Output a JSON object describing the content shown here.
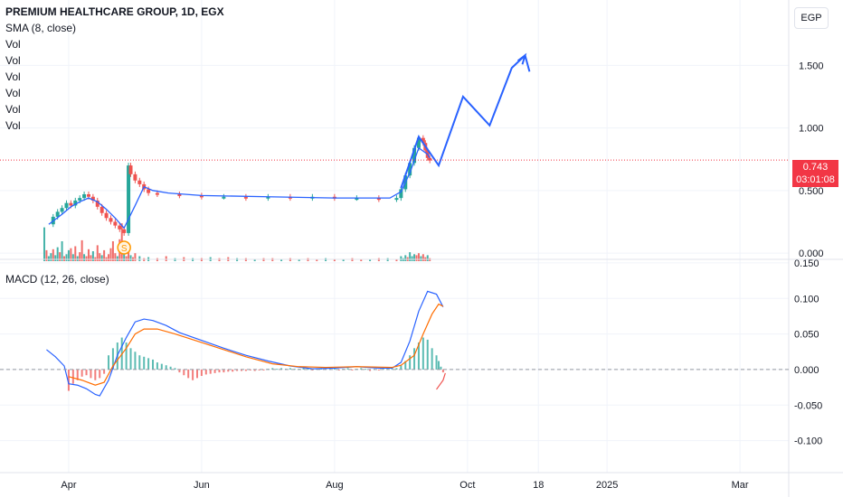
{
  "header": {
    "title": "PREMIUM HEALTHCARE GROUP, 1D, EGX",
    "indicators": [
      "SMA (8, close)",
      "Vol",
      "Vol",
      "Vol",
      "Vol",
      "Vol",
      "Vol"
    ]
  },
  "currency_button": "EGP",
  "last_price": {
    "value": "0.743",
    "countdown": "03:01:08"
  },
  "macd_legend": "MACD (12, 26, close)",
  "colors": {
    "up": "#26a69a",
    "down": "#ef5350",
    "sma": "#2962ff",
    "signal": "#ff6d00",
    "price_tag": "#f23645"
  },
  "chart_data": [
    {
      "type": "candlestick",
      "title": "PREMIUM HEALTHCARE GROUP, 1D, EGX",
      "y_ticks": [
        "1.500",
        "1.000",
        "0.500",
        "0.000"
      ],
      "ylim": [
        -0.05,
        1.95
      ],
      "x_ticks": [
        "Apr",
        "Jun",
        "Aug",
        "Oct",
        "18",
        "2025",
        "Mar"
      ],
      "x_tick_values": [
        0,
        60,
        120,
        180,
        212,
        243,
        303
      ],
      "xlim": [
        -31,
        325
      ],
      "grid": true,
      "price": [
        [
          -9,
          0.23
        ],
        [
          -7,
          0.29
        ],
        [
          -5,
          0.33
        ],
        [
          -3,
          0.36
        ],
        [
          -1,
          0.4
        ],
        [
          1,
          0.38
        ],
        [
          3,
          0.42
        ],
        [
          5,
          0.44
        ],
        [
          7,
          0.47
        ],
        [
          9,
          0.45
        ],
        [
          11,
          0.42
        ],
        [
          13,
          0.37
        ],
        [
          15,
          0.32
        ],
        [
          17,
          0.28
        ],
        [
          19,
          0.25
        ],
        [
          21,
          0.22
        ],
        [
          23,
          0.19
        ],
        [
          25,
          0.16
        ],
        [
          27,
          0.7
        ],
        [
          28,
          0.63
        ],
        [
          30,
          0.58
        ],
        [
          32,
          0.55
        ],
        [
          34,
          0.51
        ],
        [
          36,
          0.48
        ],
        [
          40,
          0.47
        ],
        [
          50,
          0.46
        ],
        [
          60,
          0.45
        ],
        [
          70,
          0.45
        ],
        [
          80,
          0.44
        ],
        [
          90,
          0.45
        ],
        [
          100,
          0.44
        ],
        [
          110,
          0.45
        ],
        [
          120,
          0.44
        ],
        [
          130,
          0.44
        ],
        [
          140,
          0.43
        ],
        [
          148,
          0.44
        ],
        [
          150,
          0.51
        ],
        [
          152,
          0.62
        ],
        [
          154,
          0.72
        ],
        [
          156,
          0.84
        ],
        [
          158,
          0.92
        ],
        [
          160,
          0.88
        ],
        [
          161,
          0.82
        ],
        [
          162,
          0.76
        ],
        [
          163,
          0.74
        ]
      ],
      "sma_8": [
        [
          -9,
          0.23
        ],
        [
          -3,
          0.31
        ],
        [
          1,
          0.37
        ],
        [
          5,
          0.41
        ],
        [
          9,
          0.44
        ],
        [
          13,
          0.41
        ],
        [
          17,
          0.35
        ],
        [
          21,
          0.28
        ],
        [
          25,
          0.2
        ],
        [
          30,
          0.38
        ],
        [
          34,
          0.53
        ],
        [
          38,
          0.5
        ],
        [
          45,
          0.48
        ],
        [
          60,
          0.46
        ],
        [
          90,
          0.45
        ],
        [
          120,
          0.44
        ],
        [
          145,
          0.44
        ],
        [
          150,
          0.49
        ],
        [
          154,
          0.64
        ],
        [
          158,
          0.84
        ],
        [
          162,
          0.79
        ],
        [
          163,
          0.76
        ]
      ],
      "volume": [
        [
          -11,
          0.34
        ],
        [
          -10,
          0.11
        ],
        [
          -9,
          0.05
        ],
        [
          -8,
          0.08
        ],
        [
          -7,
          0.12
        ],
        [
          -6,
          0.06
        ],
        [
          -5,
          0.14
        ],
        [
          -4,
          0.09
        ],
        [
          -3,
          0.2
        ],
        [
          -2,
          0.05
        ],
        [
          -1,
          0.07
        ],
        [
          0,
          0.11
        ],
        [
          1,
          0.13
        ],
        [
          2,
          0.07
        ],
        [
          3,
          0.15
        ],
        [
          4,
          0.05
        ],
        [
          5,
          0.09
        ],
        [
          6,
          0.21
        ],
        [
          7,
          0.07
        ],
        [
          8,
          0.05
        ],
        [
          9,
          0.12
        ],
        [
          10,
          0.06
        ],
        [
          11,
          0.1
        ],
        [
          12,
          0.04
        ],
        [
          13,
          0.16
        ],
        [
          14,
          0.08
        ],
        [
          15,
          0.06
        ],
        [
          16,
          0.11
        ],
        [
          17,
          0.04
        ],
        [
          18,
          0.07
        ],
        [
          19,
          0.13
        ],
        [
          20,
          0.2
        ],
        [
          21,
          0.08
        ],
        [
          22,
          0.05
        ],
        [
          23,
          0.22
        ],
        [
          24,
          0.38
        ],
        [
          25,
          0.09
        ],
        [
          26,
          0.05
        ],
        [
          27,
          0.11
        ],
        [
          28,
          0.06
        ],
        [
          29,
          0.04
        ],
        [
          30,
          0.08
        ],
        [
          32,
          0.05
        ],
        [
          34,
          0.03
        ],
        [
          36,
          0.04
        ],
        [
          40,
          0.03
        ],
        [
          44,
          0.05
        ],
        [
          48,
          0.03
        ],
        [
          52,
          0.04
        ],
        [
          56,
          0.03
        ],
        [
          60,
          0.03
        ],
        [
          64,
          0.04
        ],
        [
          68,
          0.03
        ],
        [
          72,
          0.04
        ],
        [
          76,
          0.03
        ],
        [
          80,
          0.03
        ],
        [
          84,
          0.02
        ],
        [
          88,
          0.03
        ],
        [
          92,
          0.03
        ],
        [
          96,
          0.02
        ],
        [
          100,
          0.03
        ],
        [
          104,
          0.02
        ],
        [
          108,
          0.03
        ],
        [
          112,
          0.02
        ],
        [
          116,
          0.03
        ],
        [
          120,
          0.02
        ],
        [
          124,
          0.02
        ],
        [
          128,
          0.03
        ],
        [
          132,
          0.02
        ],
        [
          136,
          0.02
        ],
        [
          140,
          0.03
        ],
        [
          144,
          0.03
        ],
        [
          148,
          0.02
        ],
        [
          150,
          0.05
        ],
        [
          151,
          0.03
        ],
        [
          152,
          0.06
        ],
        [
          153,
          0.04
        ],
        [
          154,
          0.09
        ],
        [
          155,
          0.05
        ],
        [
          156,
          0.07
        ],
        [
          157,
          0.06
        ],
        [
          158,
          0.08
        ],
        [
          159,
          0.05
        ],
        [
          160,
          0.07
        ],
        [
          161,
          0.04
        ],
        [
          162,
          0.06
        ],
        [
          163,
          0.03
        ]
      ],
      "volume_direction": [
        1,
        0,
        1,
        1,
        0,
        1,
        1,
        0,
        1,
        0,
        1,
        1,
        0,
        1,
        0,
        1,
        0,
        0,
        1,
        0,
        0,
        0,
        1,
        0,
        0,
        0,
        1,
        0,
        0,
        0,
        0,
        0,
        0,
        1,
        0,
        0,
        1,
        0,
        0,
        1,
        0,
        0,
        1,
        0,
        1,
        0,
        0,
        1,
        0,
        1,
        0,
        1,
        0,
        0,
        1,
        0,
        1,
        0,
        0,
        1,
        0,
        1,
        0,
        0,
        1,
        0,
        1,
        0,
        0,
        1,
        0,
        1,
        0,
        1,
        1,
        1,
        0,
        1,
        1,
        1,
        0,
        0,
        1,
        0,
        0,
        1,
        0
      ],
      "projection": [
        [
          150,
          0.52
        ],
        [
          158,
          0.93
        ],
        [
          167,
          0.7
        ],
        [
          178,
          1.25
        ],
        [
          190,
          1.02
        ],
        [
          200,
          1.48
        ],
        [
          206,
          1.58
        ],
        [
          208,
          1.45
        ]
      ]
    },
    {
      "type": "line",
      "title": "MACD (12, 26, close)",
      "y_ticks": [
        "0.150",
        "0.100",
        "0.050",
        "0.000",
        "-0.050",
        "-0.100"
      ],
      "ylim": [
        -0.145,
        0.155
      ],
      "macd": [
        [
          -10,
          0.028
        ],
        [
          -6,
          0.018
        ],
        [
          -2,
          0.005
        ],
        [
          0,
          -0.02
        ],
        [
          4,
          -0.022
        ],
        [
          8,
          -0.027
        ],
        [
          12,
          -0.035
        ],
        [
          14,
          -0.037
        ],
        [
          18,
          -0.015
        ],
        [
          22,
          0.02
        ],
        [
          26,
          0.045
        ],
        [
          30,
          0.067
        ],
        [
          34,
          0.071
        ],
        [
          38,
          0.069
        ],
        [
          44,
          0.062
        ],
        [
          50,
          0.052
        ],
        [
          60,
          0.041
        ],
        [
          70,
          0.03
        ],
        [
          80,
          0.02
        ],
        [
          90,
          0.012
        ],
        [
          100,
          0.005
        ],
        [
          110,
          0.001
        ],
        [
          120,
          0.002
        ],
        [
          130,
          0.004
        ],
        [
          140,
          0.002
        ],
        [
          146,
          0.002
        ],
        [
          150,
          0.01
        ],
        [
          154,
          0.04
        ],
        [
          158,
          0.082
        ],
        [
          162,
          0.11
        ],
        [
          166,
          0.106
        ],
        [
          169,
          0.088
        ]
      ],
      "signal": [
        [
          0,
          -0.01
        ],
        [
          6,
          -0.015
        ],
        [
          12,
          -0.022
        ],
        [
          16,
          -0.018
        ],
        [
          20,
          0.005
        ],
        [
          26,
          0.03
        ],
        [
          30,
          0.05
        ],
        [
          34,
          0.057
        ],
        [
          40,
          0.057
        ],
        [
          48,
          0.05
        ],
        [
          58,
          0.04
        ],
        [
          70,
          0.028
        ],
        [
          80,
          0.018
        ],
        [
          92,
          0.008
        ],
        [
          104,
          0.004
        ],
        [
          116,
          0.003
        ],
        [
          130,
          0.004
        ],
        [
          146,
          0.003
        ],
        [
          150,
          0.006
        ],
        [
          156,
          0.02
        ],
        [
          160,
          0.05
        ],
        [
          164,
          0.078
        ],
        [
          167,
          0.092
        ],
        [
          169,
          0.089
        ]
      ],
      "histogram": [
        [
          0,
          -0.03
        ],
        [
          2,
          -0.02
        ],
        [
          4,
          -0.015
        ],
        [
          6,
          -0.01
        ],
        [
          8,
          -0.008
        ],
        [
          10,
          -0.012
        ],
        [
          12,
          -0.015
        ],
        [
          14,
          -0.012
        ],
        [
          16,
          -0.006
        ],
        [
          18,
          0.02
        ],
        [
          20,
          0.03
        ],
        [
          22,
          0.038
        ],
        [
          24,
          0.045
        ],
        [
          26,
          0.038
        ],
        [
          28,
          0.03
        ],
        [
          30,
          0.025
        ],
        [
          32,
          0.02
        ],
        [
          34,
          0.018
        ],
        [
          36,
          0.016
        ],
        [
          38,
          0.014
        ],
        [
          40,
          0.01
        ],
        [
          42,
          0.008
        ],
        [
          44,
          0.006
        ],
        [
          46,
          0.004
        ],
        [
          48,
          0.002
        ],
        [
          50,
          -0.004
        ],
        [
          52,
          -0.008
        ],
        [
          54,
          -0.012
        ],
        [
          56,
          -0.015
        ],
        [
          58,
          -0.012
        ],
        [
          60,
          -0.009
        ],
        [
          62,
          -0.007
        ],
        [
          64,
          -0.006
        ],
        [
          66,
          -0.005
        ],
        [
          68,
          -0.004
        ],
        [
          70,
          -0.004
        ],
        [
          72,
          -0.003
        ],
        [
          74,
          -0.003
        ],
        [
          76,
          -0.002
        ],
        [
          78,
          -0.002
        ],
        [
          80,
          -0.002
        ],
        [
          82,
          -0.001
        ],
        [
          84,
          -0.002
        ],
        [
          86,
          -0.001
        ],
        [
          88,
          -0.001
        ],
        [
          90,
          0.001
        ],
        [
          92,
          0.002
        ],
        [
          94,
          0.001
        ],
        [
          96,
          0.002
        ],
        [
          98,
          0.001
        ],
        [
          100,
          0.002
        ],
        [
          102,
          0.001
        ],
        [
          104,
          0.001
        ],
        [
          106,
          0.002
        ],
        [
          108,
          0.001
        ],
        [
          110,
          -0.001
        ],
        [
          112,
          0.001
        ],
        [
          114,
          0.002
        ],
        [
          116,
          0.001
        ],
        [
          118,
          0.001
        ],
        [
          120,
          0.002
        ],
        [
          122,
          -0.001
        ],
        [
          124,
          0.001
        ],
        [
          126,
          0.002
        ],
        [
          128,
          -0.001
        ],
        [
          130,
          0.001
        ],
        [
          132,
          0.002
        ],
        [
          134,
          0.001
        ],
        [
          136,
          -0.002
        ],
        [
          138,
          0.001
        ],
        [
          140,
          -0.001
        ],
        [
          142,
          0.001
        ],
        [
          144,
          0.001
        ],
        [
          146,
          0.001
        ],
        [
          148,
          0.002
        ],
        [
          150,
          0.006
        ],
        [
          152,
          0.012
        ],
        [
          154,
          0.02
        ],
        [
          156,
          0.03
        ],
        [
          158,
          0.038
        ],
        [
          160,
          0.045
        ],
        [
          162,
          0.042
        ],
        [
          164,
          0.03
        ],
        [
          166,
          0.02
        ],
        [
          167,
          0.012
        ],
        [
          168,
          0.004
        ],
        [
          169,
          -0.004
        ]
      ],
      "red_trend": [
        [
          166,
          -0.028
        ],
        [
          169,
          -0.015
        ],
        [
          170,
          -0.005
        ]
      ]
    }
  ]
}
